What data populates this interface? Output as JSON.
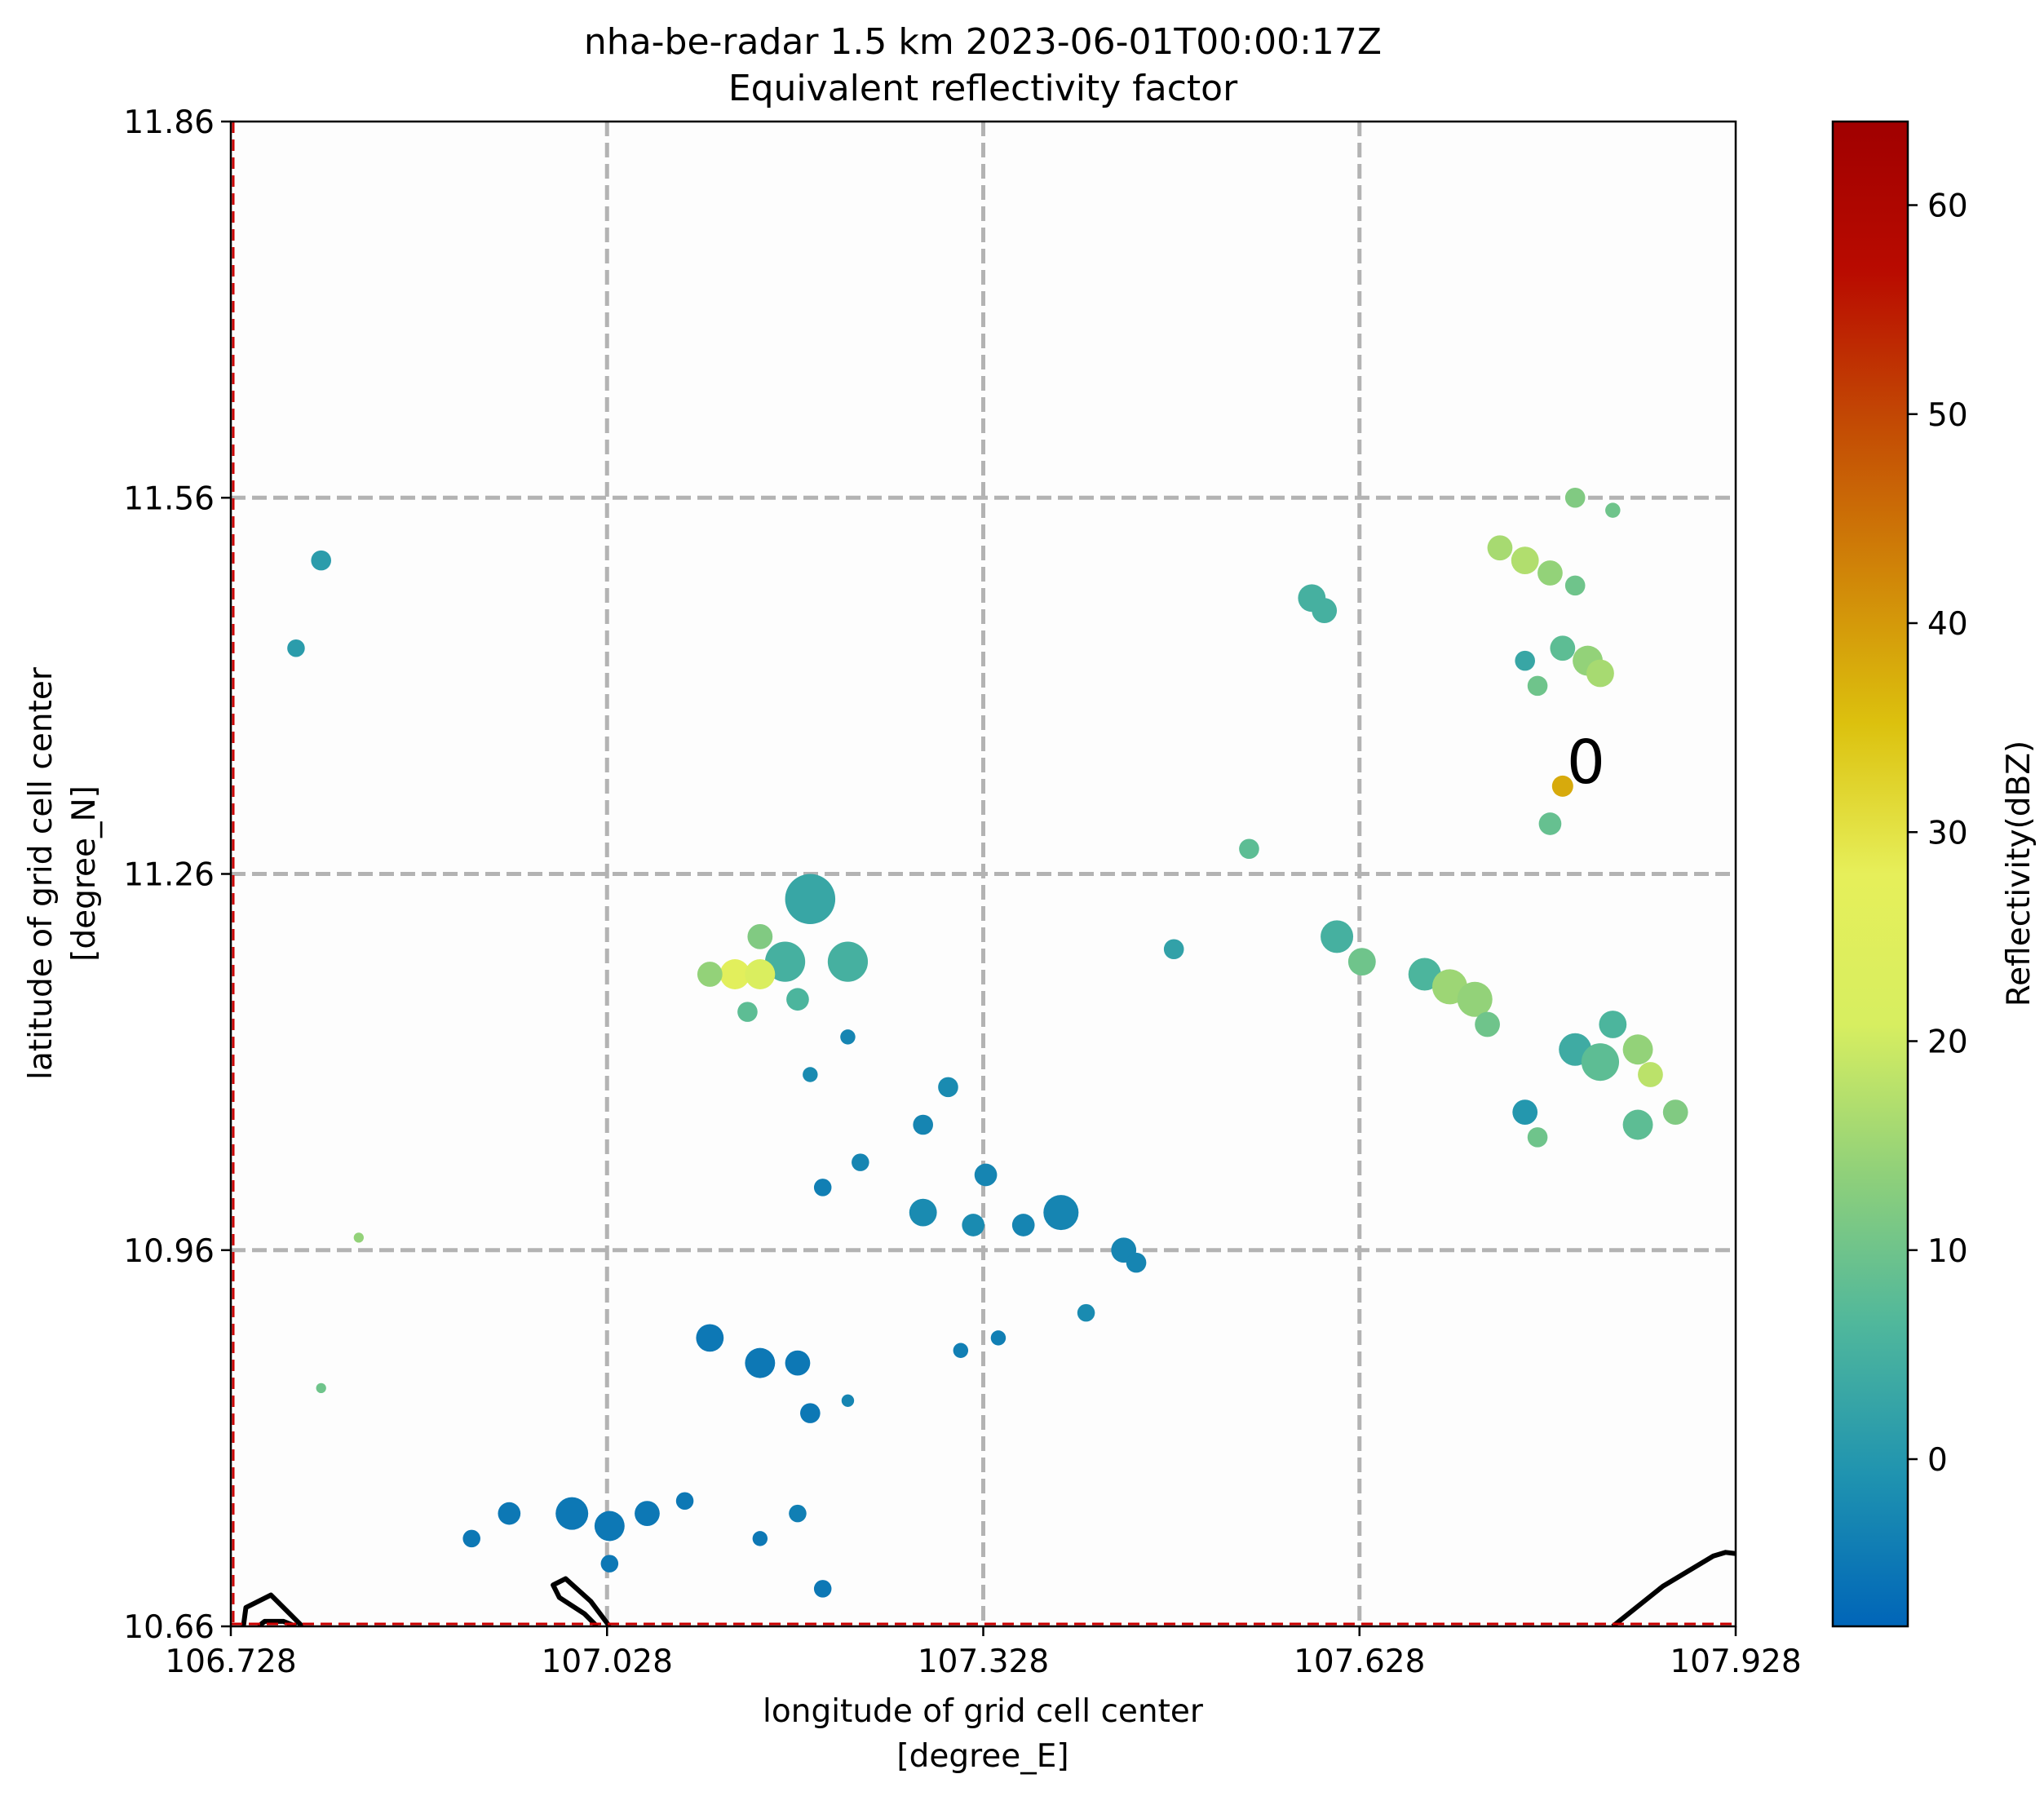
{
  "chart_data": {
    "type": "heatmap",
    "title": "nha-be-radar 1.5 km 2023-06-01T00:00:17Z",
    "subtitle": "Equivalent reflectivity factor",
    "xlabel": "longitude of grid cell center",
    "xlabel_unit": "[degree_E]",
    "ylabel": "latitude of grid cell center",
    "ylabel_unit": "[degree_N]",
    "xlim": [
      106.728,
      107.928
    ],
    "ylim": [
      10.66,
      11.86
    ],
    "x_ticks": [
      106.728,
      107.028,
      107.328,
      107.628,
      107.928
    ],
    "x_tick_labels": [
      "106.728",
      "107.028",
      "107.328",
      "107.628",
      "107.928"
    ],
    "y_ticks": [
      10.66,
      10.96,
      11.26,
      11.56,
      11.86
    ],
    "y_tick_labels": [
      "10.66",
      "10.96",
      "11.26",
      "11.56",
      "11.86"
    ],
    "grid": true,
    "grid_style": "dashed",
    "colorbar": {
      "label": "Reflectivity(dBZ)",
      "min": -8,
      "max": 64,
      "ticks": [
        0,
        10,
        20,
        30,
        40,
        50,
        60
      ],
      "tick_labels": [
        "0",
        "10",
        "20",
        "30",
        "40",
        "50",
        "60"
      ],
      "placement": "right",
      "colormap_stops": [
        "#0065b8",
        "#1f93b0",
        "#4fb79c",
        "#8fd07a",
        "#d7ee60",
        "#e6ef5a",
        "#dcc10e",
        "#d08508",
        "#c34a04",
        "#b90b00",
        "#a00000"
      ]
    },
    "cell_marker": {
      "label": "0",
      "lon": 107.79,
      "lat": 11.33,
      "dbz": 38
    },
    "echoes": [
      {
        "lon": 106.8,
        "lat": 11.51,
        "dbz": 1,
        "r": 0.008
      },
      {
        "lon": 106.78,
        "lat": 11.44,
        "dbz": 1,
        "r": 0.007
      },
      {
        "lon": 106.83,
        "lat": 10.97,
        "dbz": 14,
        "r": 0.004
      },
      {
        "lon": 106.8,
        "lat": 10.85,
        "dbz": 10,
        "r": 0.004
      },
      {
        "lon": 107.19,
        "lat": 11.24,
        "dbz": 3,
        "r": 0.02
      },
      {
        "lon": 107.17,
        "lat": 11.19,
        "dbz": 5,
        "r": 0.016
      },
      {
        "lon": 107.22,
        "lat": 11.19,
        "dbz": 5,
        "r": 0.016
      },
      {
        "lon": 107.13,
        "lat": 11.18,
        "dbz": 26,
        "r": 0.012
      },
      {
        "lon": 107.15,
        "lat": 11.18,
        "dbz": 22,
        "r": 0.012
      },
      {
        "lon": 107.11,
        "lat": 11.18,
        "dbz": 14,
        "r": 0.01
      },
      {
        "lon": 107.15,
        "lat": 11.21,
        "dbz": 12,
        "r": 0.01
      },
      {
        "lon": 107.18,
        "lat": 11.16,
        "dbz": 6,
        "r": 0.009
      },
      {
        "lon": 107.14,
        "lat": 11.15,
        "dbz": 8,
        "r": 0.008
      },
      {
        "lon": 107.22,
        "lat": 11.13,
        "dbz": -3,
        "r": 0.006
      },
      {
        "lon": 107.19,
        "lat": 11.1,
        "dbz": -2,
        "r": 0.006
      },
      {
        "lon": 107.3,
        "lat": 11.09,
        "dbz": -2,
        "r": 0.008
      },
      {
        "lon": 107.28,
        "lat": 11.06,
        "dbz": -3,
        "r": 0.008
      },
      {
        "lon": 107.23,
        "lat": 11.03,
        "dbz": -3,
        "r": 0.007
      },
      {
        "lon": 107.2,
        "lat": 11.01,
        "dbz": -4,
        "r": 0.007
      },
      {
        "lon": 107.33,
        "lat": 11.02,
        "dbz": -3,
        "r": 0.009
      },
      {
        "lon": 107.28,
        "lat": 10.99,
        "dbz": -2,
        "r": 0.011
      },
      {
        "lon": 107.32,
        "lat": 10.98,
        "dbz": -2,
        "r": 0.009
      },
      {
        "lon": 107.39,
        "lat": 10.99,
        "dbz": -3,
        "r": 0.014
      },
      {
        "lon": 107.36,
        "lat": 10.98,
        "dbz": -3,
        "r": 0.009
      },
      {
        "lon": 107.44,
        "lat": 10.96,
        "dbz": -3,
        "r": 0.01
      },
      {
        "lon": 107.45,
        "lat": 10.95,
        "dbz": -3,
        "r": 0.008
      },
      {
        "lon": 107.41,
        "lat": 10.91,
        "dbz": -2,
        "r": 0.007
      },
      {
        "lon": 107.11,
        "lat": 10.89,
        "dbz": -5,
        "r": 0.011
      },
      {
        "lon": 107.15,
        "lat": 10.87,
        "dbz": -5,
        "r": 0.012
      },
      {
        "lon": 107.18,
        "lat": 10.87,
        "dbz": -5,
        "r": 0.01
      },
      {
        "lon": 107.19,
        "lat": 10.83,
        "dbz": -5,
        "r": 0.008
      },
      {
        "lon": 107.22,
        "lat": 10.84,
        "dbz": -3,
        "r": 0.005
      },
      {
        "lon": 107.31,
        "lat": 10.88,
        "dbz": -4,
        "r": 0.006
      },
      {
        "lon": 107.34,
        "lat": 10.89,
        "dbz": -4,
        "r": 0.006
      },
      {
        "lon": 107.0,
        "lat": 10.75,
        "dbz": -5,
        "r": 0.013
      },
      {
        "lon": 107.03,
        "lat": 10.74,
        "dbz": -5,
        "r": 0.012
      },
      {
        "lon": 107.06,
        "lat": 10.75,
        "dbz": -5,
        "r": 0.01
      },
      {
        "lon": 106.95,
        "lat": 10.75,
        "dbz": -5,
        "r": 0.009
      },
      {
        "lon": 106.92,
        "lat": 10.73,
        "dbz": -5,
        "r": 0.007
      },
      {
        "lon": 107.09,
        "lat": 10.76,
        "dbz": -5,
        "r": 0.007
      },
      {
        "lon": 107.03,
        "lat": 10.71,
        "dbz": -5,
        "r": 0.007
      },
      {
        "lon": 107.18,
        "lat": 10.75,
        "dbz": -4,
        "r": 0.007
      },
      {
        "lon": 107.15,
        "lat": 10.73,
        "dbz": -5,
        "r": 0.006
      },
      {
        "lon": 107.2,
        "lat": 10.69,
        "dbz": -5,
        "r": 0.007
      },
      {
        "lon": 107.59,
        "lat": 11.48,
        "dbz": 5,
        "r": 0.011
      },
      {
        "lon": 107.6,
        "lat": 11.47,
        "dbz": 5,
        "r": 0.01
      },
      {
        "lon": 107.54,
        "lat": 11.28,
        "dbz": 8,
        "r": 0.008
      },
      {
        "lon": 107.48,
        "lat": 11.2,
        "dbz": 2,
        "r": 0.008
      },
      {
        "lon": 107.78,
        "lat": 11.3,
        "dbz": 9,
        "r": 0.009
      },
      {
        "lon": 107.74,
        "lat": 11.52,
        "dbz": 16,
        "r": 0.01
      },
      {
        "lon": 107.76,
        "lat": 11.51,
        "dbz": 17,
        "r": 0.011
      },
      {
        "lon": 107.78,
        "lat": 11.5,
        "dbz": 14,
        "r": 0.01
      },
      {
        "lon": 107.8,
        "lat": 11.49,
        "dbz": 10,
        "r": 0.008
      },
      {
        "lon": 107.8,
        "lat": 11.56,
        "dbz": 12,
        "r": 0.008
      },
      {
        "lon": 107.83,
        "lat": 11.55,
        "dbz": 10,
        "r": 0.006
      },
      {
        "lon": 107.76,
        "lat": 11.43,
        "dbz": 3,
        "r": 0.008
      },
      {
        "lon": 107.77,
        "lat": 11.41,
        "dbz": 10,
        "r": 0.008
      },
      {
        "lon": 107.79,
        "lat": 11.44,
        "dbz": 8,
        "r": 0.01
      },
      {
        "lon": 107.81,
        "lat": 11.43,
        "dbz": 14,
        "r": 0.012
      },
      {
        "lon": 107.82,
        "lat": 11.42,
        "dbz": 16,
        "r": 0.011
      },
      {
        "lon": 107.61,
        "lat": 11.21,
        "dbz": 5,
        "r": 0.013
      },
      {
        "lon": 107.63,
        "lat": 11.19,
        "dbz": 10,
        "r": 0.011
      },
      {
        "lon": 107.68,
        "lat": 11.18,
        "dbz": 6,
        "r": 0.013
      },
      {
        "lon": 107.7,
        "lat": 11.17,
        "dbz": 15,
        "r": 0.014
      },
      {
        "lon": 107.72,
        "lat": 11.16,
        "dbz": 14,
        "r": 0.014
      },
      {
        "lon": 107.73,
        "lat": 11.14,
        "dbz": 10,
        "r": 0.01
      },
      {
        "lon": 107.76,
        "lat": 11.07,
        "dbz": 0,
        "r": 0.01
      },
      {
        "lon": 107.77,
        "lat": 11.05,
        "dbz": 10,
        "r": 0.008
      },
      {
        "lon": 107.8,
        "lat": 11.12,
        "dbz": 4,
        "r": 0.013
      },
      {
        "lon": 107.82,
        "lat": 11.11,
        "dbz": 8,
        "r": 0.015
      },
      {
        "lon": 107.83,
        "lat": 11.14,
        "dbz": 6,
        "r": 0.011
      },
      {
        "lon": 107.85,
        "lat": 11.12,
        "dbz": 14,
        "r": 0.012
      },
      {
        "lon": 107.86,
        "lat": 11.1,
        "dbz": 18,
        "r": 0.01
      },
      {
        "lon": 107.85,
        "lat": 11.06,
        "dbz": 8,
        "r": 0.012
      },
      {
        "lon": 107.88,
        "lat": 11.07,
        "dbz": 12,
        "r": 0.01
      }
    ],
    "coastlines": [
      [
        [
          106.738,
          10.66
        ],
        [
          106.74,
          10.675
        ],
        [
          106.76,
          10.685
        ],
        [
          106.775,
          10.67
        ],
        [
          106.785,
          10.66
        ]
      ],
      [
        [
          106.75,
          10.66
        ],
        [
          106.755,
          10.664
        ],
        [
          106.77,
          10.664
        ],
        [
          106.78,
          10.66
        ]
      ],
      [
        [
          107.03,
          10.66
        ],
        [
          107.015,
          10.68
        ],
        [
          106.995,
          10.698
        ],
        [
          106.985,
          10.693
        ],
        [
          106.99,
          10.683
        ],
        [
          107.01,
          10.67
        ],
        [
          107.02,
          10.66
        ]
      ],
      [
        [
          107.83,
          10.66
        ],
        [
          107.87,
          10.692
        ],
        [
          107.91,
          10.716
        ],
        [
          107.92,
          10.719
        ],
        [
          107.928,
          10.718
        ]
      ]
    ]
  }
}
